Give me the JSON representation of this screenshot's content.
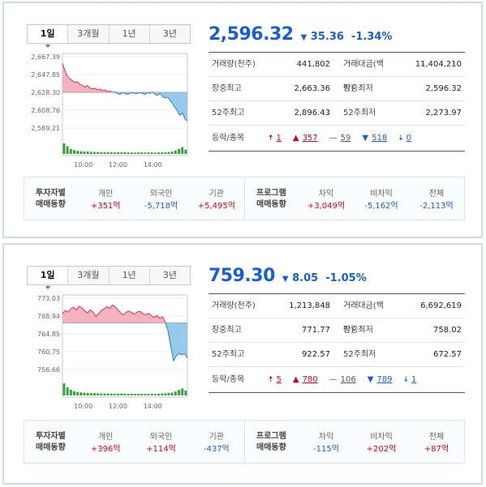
{
  "labels": {
    "trading_volume": "거래량(천주)",
    "trading_value": "거래대금(백만)",
    "intraday_high": "장중최고",
    "intraday_low": "장중최저",
    "week52_high": "52주최고",
    "week52_low": "52주최저",
    "updown": "등락/종목",
    "investor_trend": [
      "투자자별",
      "매매동향"
    ],
    "program_trend": [
      "프로그램",
      "매매동향"
    ]
  },
  "tabs": [
    "1일",
    "3개월",
    "1년",
    "3년"
  ],
  "indices": [
    {
      "price": "2,596.32",
      "change_symbol": "▼",
      "change": "35.36",
      "change_pct": "-1.34%",
      "volume": "441,802",
      "value": "11,404,210",
      "high": "2,663.36",
      "low": "2,596.32",
      "high52": "2,896.43",
      "low52": "2,273.97",
      "updown": {
        "upper_limit": "1",
        "up": "357",
        "flat": "59",
        "down": "518",
        "lower_limit": "0"
      },
      "investor": [
        {
          "name": "개인",
          "value": "+351억",
          "color": "red"
        },
        {
          "name": "외국인",
          "value": "-5,718억",
          "color": "blue"
        },
        {
          "name": "기관",
          "value": "+5,495억",
          "color": "red"
        }
      ],
      "program": [
        {
          "name": "차익",
          "value": "+3,049억",
          "color": "red"
        },
        {
          "name": "비차익",
          "value": "-5,162억",
          "color": "blue"
        },
        {
          "name": "전체",
          "value": "-2,113억",
          "color": "blue"
        }
      ],
      "chart": {
        "yticks": [
          "2,667.39",
          "2,647.85",
          "2,628.30",
          "2,608.76",
          "2,589.21"
        ],
        "ymin": 2589.21,
        "ymax": 2667.39,
        "ref": 2628.3,
        "xticks": [
          "10:00",
          "12:00",
          "14:00"
        ],
        "series": [
          2660,
          2652,
          2646,
          2643,
          2641,
          2639,
          2640,
          2637,
          2636,
          2634,
          2636,
          2633,
          2632,
          2633,
          2631,
          2632,
          2630,
          2631,
          2629,
          2630,
          2628,
          2629,
          2627,
          2626,
          2628,
          2627,
          2626,
          2627,
          2628,
          2627,
          2627,
          2628,
          2627,
          2626,
          2628,
          2627,
          2629,
          2626,
          2625,
          2627,
          2624,
          2622,
          2623,
          2620,
          2616,
          2612,
          2608,
          2603,
          2606,
          2599,
          2597
        ],
        "volume": [
          0.55,
          0.4,
          0.25,
          0.2,
          0.16,
          0.14,
          0.13,
          0.12,
          0.11,
          0.1,
          0.1,
          0.09,
          0.09,
          0.1,
          0.09,
          0.08,
          0.08,
          0.08,
          0.09,
          0.08,
          0.08,
          0.07,
          0.08,
          0.08,
          0.07,
          0.08,
          0.08,
          0.07,
          0.08,
          0.08,
          0.09,
          0.1,
          0.12,
          0.18,
          0.26,
          0.35,
          0.22
        ]
      }
    },
    {
      "price": "759.30",
      "change_symbol": "▼",
      "change": "8.05",
      "change_pct": "-1.05%",
      "volume": "1,213,848",
      "value": "6,692,619",
      "high": "771.77",
      "low": "758.02",
      "high52": "922.57",
      "low52": "672.57",
      "updown": {
        "upper_limit": "5",
        "up": "780",
        "flat": "106",
        "down": "789",
        "lower_limit": "1"
      },
      "investor": [
        {
          "name": "개인",
          "value": "+396억",
          "color": "red"
        },
        {
          "name": "외국인",
          "value": "+114억",
          "color": "red"
        },
        {
          "name": "기관",
          "value": "-437억",
          "color": "blue"
        }
      ],
      "program": [
        {
          "name": "차익",
          "value": "-115억",
          "color": "blue"
        },
        {
          "name": "비차익",
          "value": "+202억",
          "color": "red"
        },
        {
          "name": "전체",
          "value": "+87억",
          "color": "red"
        }
      ],
      "chart": {
        "yticks": [
          "773.03",
          "768.94",
          "764.85",
          "760.75",
          "756.66"
        ],
        "ymin": 756.66,
        "ymax": 773.03,
        "ref": 767.35,
        "xticks": [
          "10:00",
          "12:00",
          "14:00"
        ],
        "series": [
          769.5,
          770.2,
          769.8,
          770.6,
          771.0,
          770.3,
          771.2,
          770.8,
          770.1,
          769.6,
          770.4,
          769.9,
          768.8,
          769.5,
          770.2,
          770.6,
          771.1,
          770.7,
          771.5,
          771.0,
          770.4,
          769.6,
          769.2,
          769.8,
          770.1,
          769.7,
          769.4,
          769.9,
          770.0,
          769.5,
          769.2,
          769.6,
          769.0,
          768.6,
          769.1,
          768.4,
          768.8,
          767.6,
          765.5,
          762.0,
          758.6,
          759.8,
          760.4,
          760.0,
          760.3,
          759.3
        ],
        "volume": [
          0.62,
          0.42,
          0.3,
          0.22,
          0.18,
          0.16,
          0.14,
          0.13,
          0.12,
          0.12,
          0.11,
          0.1,
          0.1,
          0.1,
          0.09,
          0.09,
          0.09,
          0.1,
          0.09,
          0.08,
          0.09,
          0.08,
          0.08,
          0.09,
          0.08,
          0.08,
          0.09,
          0.08,
          0.09,
          0.1,
          0.11,
          0.13,
          0.15,
          0.2,
          0.28,
          0.36,
          0.25
        ]
      }
    }
  ]
}
